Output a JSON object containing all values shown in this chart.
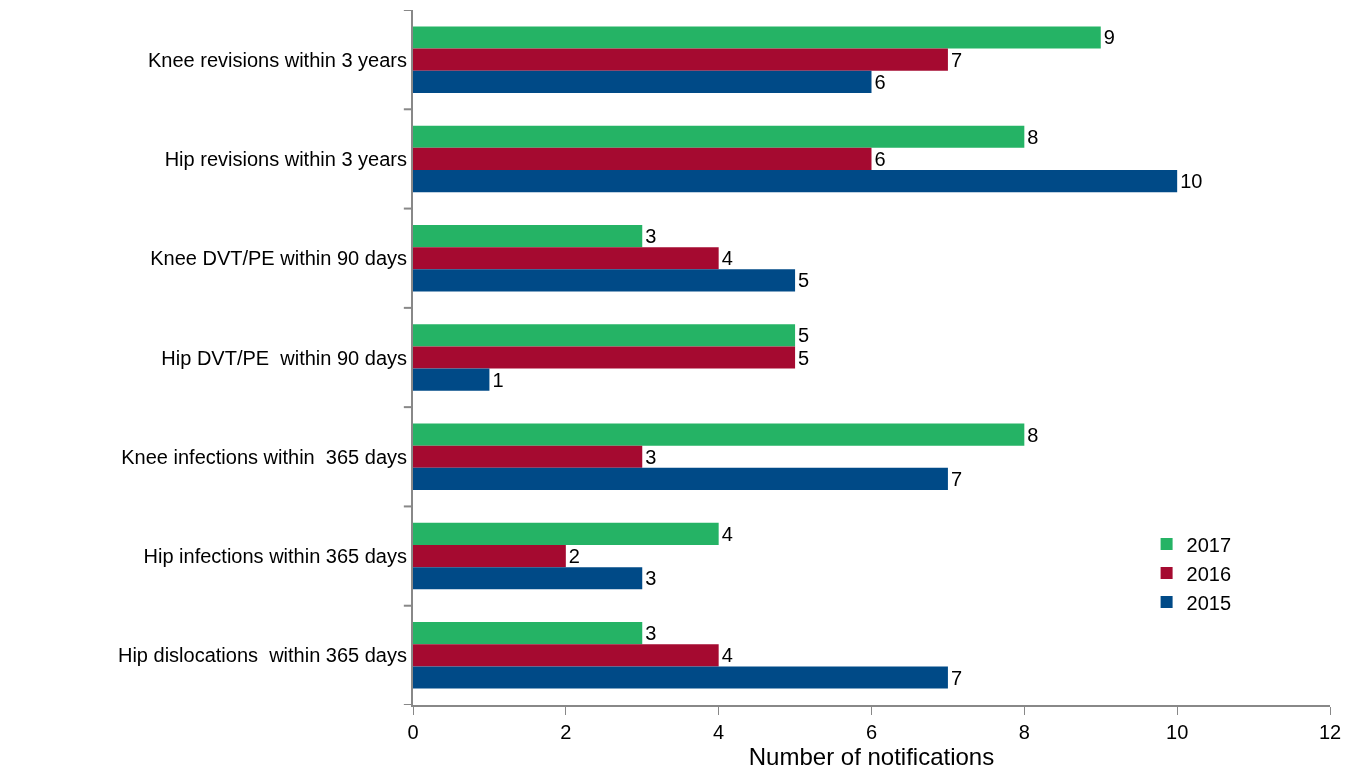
{
  "chart_data": {
    "type": "bar",
    "orientation": "horizontal",
    "xlabel": "Number of notifications",
    "categories": [
      "Knee revisions within 3 years",
      "Hip revisions within 3 years",
      "Knee DVT/PE within 90 days",
      "Hip DVT/PE  within 90 days",
      "Knee infections within  365 days",
      "Hip infections within 365 days",
      "Hip dislocations  within 365 days"
    ],
    "series": [
      {
        "name": "2017",
        "color": "#25b365",
        "values": [
          9,
          8,
          3,
          5,
          8,
          4,
          3
        ]
      },
      {
        "name": "2016",
        "color": "#a50a30",
        "values": [
          7,
          6,
          4,
          5,
          3,
          2,
          4
        ]
      },
      {
        "name": "2015",
        "color": "#004a87",
        "values": [
          6,
          10,
          5,
          1,
          7,
          3,
          7
        ]
      }
    ],
    "xlim": [
      0,
      12
    ],
    "xticks": [
      0,
      2,
      4,
      6,
      8,
      10,
      12
    ],
    "data_labels": true,
    "legend": "bottom right"
  }
}
